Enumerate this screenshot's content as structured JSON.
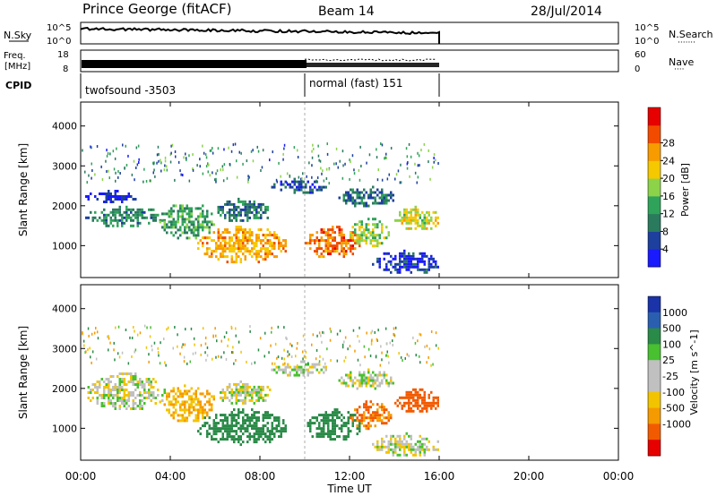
{
  "header": {
    "station": "Prince George (fitACF)",
    "beam": "Beam 14",
    "date": "28/Jul/2014"
  },
  "strips": {
    "nsky": {
      "label": "N.Sky",
      "right_label": "N.Search",
      "right_marker": "·······",
      "left_ticks": [
        "10^5",
        "10^0"
      ],
      "right_ticks": [
        "10^5",
        "10^0"
      ]
    },
    "freq": {
      "label_top": "Freq.",
      "label_bottom": "[MHz]",
      "right_label": "Nave",
      "right_marker": "····",
      "left_ticks": [
        "18",
        "8"
      ],
      "right_ticks": [
        "60",
        "0"
      ]
    },
    "cpid": {
      "label": "CPID",
      "modes": [
        {
          "name": "twofsound -3503",
          "start_hour": 0.0,
          "end_hour": 10.0
        },
        {
          "name": "normal (fast) 151",
          "start_hour": 10.0,
          "end_hour": 16.0
        }
      ]
    }
  },
  "time_axis": {
    "label": "Time UT",
    "range_hours": [
      0,
      24
    ],
    "tick_hours": [
      0,
      4,
      8,
      12,
      16,
      20,
      24
    ],
    "tick_labels": [
      "00:00",
      "04:00",
      "08:00",
      "12:00",
      "16:00",
      "20:00",
      "00:00"
    ],
    "data_end_hour": 16.0,
    "mode_change_hour": 10.0
  },
  "chart_data": [
    {
      "type": "heatmap",
      "xlabel": "Time UT",
      "ylabel": "Slant Range [km]",
      "ylim": [
        200,
        4600
      ],
      "y_ticks": [
        1000,
        2000,
        3000,
        4000
      ],
      "colorbar": {
        "label": "Power [dB]",
        "range": [
          0,
          32
        ],
        "ticks": [
          4,
          8,
          12,
          16,
          20,
          24,
          28
        ],
        "colors": [
          "#1a1aff",
          "#1d3f9e",
          "#2a7a5e",
          "#2fa35a",
          "#8cd34a",
          "#f5c800",
          "#f79b00",
          "#f24b00",
          "#e60000"
        ]
      },
      "echo_regions": [
        {
          "t0": 0.2,
          "t1": 3.8,
          "r0": 1500,
          "r1": 2000,
          "level": 10
        },
        {
          "t0": 0.2,
          "t1": 2.5,
          "r0": 2100,
          "r1": 2400,
          "level": 3
        },
        {
          "t0": 3.5,
          "t1": 6.0,
          "r0": 1200,
          "r1": 2100,
          "level": 12
        },
        {
          "t0": 5.2,
          "t1": 9.2,
          "r0": 600,
          "r1": 1500,
          "level": 22
        },
        {
          "t0": 6.0,
          "t1": 8.5,
          "r0": 1600,
          "r1": 2200,
          "level": 9
        },
        {
          "t0": 8.5,
          "t1": 11.0,
          "r0": 2350,
          "r1": 2700,
          "level": 6
        },
        {
          "t0": 10.0,
          "t1": 12.5,
          "r0": 700,
          "r1": 1500,
          "level": 25
        },
        {
          "t0": 12.0,
          "t1": 13.8,
          "r0": 1000,
          "r1": 1700,
          "level": 16
        },
        {
          "t0": 11.5,
          "t1": 14.0,
          "r0": 2000,
          "r1": 2500,
          "level": 8
        },
        {
          "t0": 14.0,
          "t1": 16.0,
          "r0": 1400,
          "r1": 2000,
          "level": 18
        },
        {
          "t0": 13.0,
          "t1": 16.0,
          "r0": 300,
          "r1": 900,
          "level": 4
        }
      ]
    },
    {
      "type": "heatmap",
      "xlabel": "Time UT",
      "ylabel": "Slant Range [km]",
      "ylim": [
        200,
        4600
      ],
      "y_ticks": [
        1000,
        2000,
        3000,
        4000
      ],
      "colorbar": {
        "label": "Velocity [m s^-1]",
        "tick_labels": [
          "1000",
          "500",
          "100",
          "25",
          "-25",
          "-100",
          "-500",
          "-1000"
        ],
        "tick_values": [
          1000,
          500,
          100,
          25,
          -25,
          -100,
          -500,
          -1000
        ],
        "colors": [
          "#1a33a8",
          "#2a5fb0",
          "#2a8a48",
          "#48c030",
          "#c0c0c0",
          "#c0c0c0",
          "#f2c400",
          "#f59a00",
          "#f25a00",
          "#e60000"
        ]
      },
      "echo_regions": [
        {
          "t0": 0.2,
          "t1": 3.8,
          "r0": 1500,
          "r1": 2400,
          "velocity": 0
        },
        {
          "t0": 3.5,
          "t1": 6.0,
          "r0": 1200,
          "r1": 2100,
          "velocity": -100
        },
        {
          "t0": 5.2,
          "t1": 9.2,
          "r0": 600,
          "r1": 1500,
          "velocity": 150
        },
        {
          "t0": 6.0,
          "t1": 8.5,
          "r0": 1600,
          "r1": 2200,
          "velocity": 0
        },
        {
          "t0": 8.5,
          "t1": 11.0,
          "r0": 2350,
          "r1": 2700,
          "velocity": 0
        },
        {
          "t0": 10.0,
          "t1": 12.5,
          "r0": 700,
          "r1": 1500,
          "velocity": 120
        },
        {
          "t0": 12.0,
          "t1": 13.8,
          "r0": 1000,
          "r1": 1700,
          "velocity": -300
        },
        {
          "t0": 11.5,
          "t1": 14.0,
          "r0": 2000,
          "r1": 2500,
          "velocity": 0
        },
        {
          "t0": 14.0,
          "t1": 16.0,
          "r0": 1400,
          "r1": 2000,
          "velocity": -400
        },
        {
          "t0": 13.0,
          "t1": 16.0,
          "r0": 300,
          "r1": 900,
          "velocity": 0
        }
      ]
    }
  ]
}
